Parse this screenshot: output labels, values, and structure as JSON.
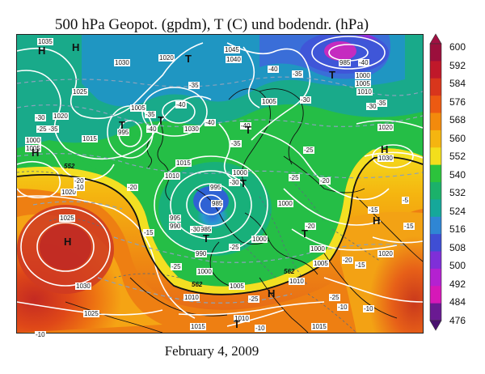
{
  "title": "500 hPa Geopot. (gpdm), T (C) und bodendr. (hPa)",
  "footer": "February 4, 2009",
  "colorbar": {
    "labels": [
      "600",
      "592",
      "584",
      "576",
      "568",
      "560",
      "552",
      "540",
      "532",
      "524",
      "516",
      "508",
      "500",
      "492",
      "484",
      "476"
    ],
    "colors": [
      "#9b0f3c",
      "#c0182a",
      "#d8361c",
      "#ec5a12",
      "#f38a0c",
      "#f5b510",
      "#f3de1c",
      "#2cc33c",
      "#1bb16a",
      "#15a89a",
      "#2f86d4",
      "#3f4ed4",
      "#7f2fd8",
      "#b421d0",
      "#d618b8",
      "#6a1a92"
    ]
  },
  "pressure_labels": [
    {
      "text": "1035"
    },
    {
      "text": "1030"
    },
    {
      "text": "1025"
    },
    {
      "text": "1020"
    },
    {
      "text": "1015"
    },
    {
      "text": "1010"
    },
    {
      "text": "1005"
    },
    {
      "text": "1000"
    },
    {
      "text": "995"
    },
    {
      "text": "990"
    },
    {
      "text": "985"
    },
    {
      "text": "1040"
    },
    {
      "text": "1045"
    }
  ],
  "temperature_labels": [
    {
      "text": "-40"
    },
    {
      "text": "-35"
    },
    {
      "text": "-30"
    },
    {
      "text": "-25"
    },
    {
      "text": "-20"
    },
    {
      "text": "-15"
    },
    {
      "text": "-10"
    },
    {
      "text": "-5"
    }
  ],
  "geopotential_labels": [
    {
      "text": "552"
    },
    {
      "text": "562"
    }
  ],
  "pressure_centres": [
    {
      "text": "H"
    },
    {
      "text": "T"
    }
  ]
}
